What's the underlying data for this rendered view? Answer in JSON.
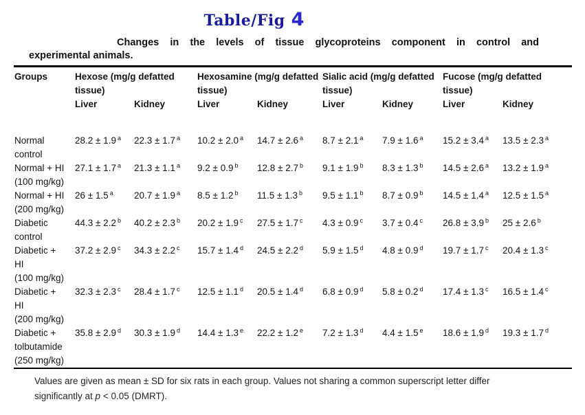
{
  "colors": {
    "title_main": "#1b1b9e",
    "title_number": "#2727cd",
    "text": "#151515",
    "rule": "#000000"
  },
  "title": {
    "main": "Table/Fig",
    "number": "4"
  },
  "caption": {
    "line1": "Changes in the levels of tissue glycoproteins component in control and",
    "line2": "experimental animals."
  },
  "table": {
    "groups_header": "Groups",
    "liver_label": "Liver",
    "kidney_label": "Kidney",
    "col_groups": [
      "Hexose (mg/g defatted tissue)",
      "Hexosamine (mg/g defatted tissue)",
      "Sialic acid (mg/g defatted tissue)",
      "Fucose  (mg/g defatted tissue)"
    ],
    "rows": [
      {
        "group_lines": [
          "Normal",
          "control"
        ],
        "values": [
          {
            "v": "28.2 ± 1.9",
            "s": "a"
          },
          {
            "v": "22.3 ± 1.7",
            "s": "a"
          },
          {
            "v": "10.2 ± 2.0",
            "s": "a"
          },
          {
            "v": "14.7 ± 2.6",
            "s": "a"
          },
          {
            "v": "8.7 ± 2.1",
            "s": "a"
          },
          {
            "v": "7.9 ± 1.6",
            "s": "a"
          },
          {
            "v": "15.2 ± 3.4",
            "s": "a"
          },
          {
            "v": "13.5 ± 2.3",
            "s": "a"
          }
        ]
      },
      {
        "group_lines": [
          "Normal + HI",
          "(100 mg/kg)"
        ],
        "values": [
          {
            "v": "27.1 ± 1.7",
            "s": "a"
          },
          {
            "v": "21.3 ± 1.1",
            "s": "a"
          },
          {
            "v": "9.2 ± 0.9",
            "s": "b"
          },
          {
            "v": "12.8 ± 2.7",
            "s": "b"
          },
          {
            "v": "9.1 ± 1.9",
            "s": "b"
          },
          {
            "v": "8.3 ± 1.3",
            "s": "b"
          },
          {
            "v": "14.5 ± 2.6",
            "s": "a"
          },
          {
            "v": "13.2 ± 1.9",
            "s": "a"
          }
        ]
      },
      {
        "group_lines": [
          "Normal + HI",
          "(200 mg/kg)"
        ],
        "values": [
          {
            "v": "26 ± 1.5",
            "s": "a"
          },
          {
            "v": "20.7 ± 1.9",
            "s": "a"
          },
          {
            "v": "8.5 ± 1.2",
            "s": "b"
          },
          {
            "v": "11.5 ± 1.3",
            "s": "b"
          },
          {
            "v": "9.5 ± 1.1",
            "s": "b"
          },
          {
            "v": "8.7 ± 0.9",
            "s": "b"
          },
          {
            "v": "14.5 ± 1.4",
            "s": "a"
          },
          {
            "v": "12.5 ± 1.5",
            "s": "a"
          }
        ]
      },
      {
        "group_lines": [
          "Diabetic",
          "control"
        ],
        "values": [
          {
            "v": "44.3 ± 2.2",
            "s": "b"
          },
          {
            "v": "40.2 ± 2.3",
            "s": "b"
          },
          {
            "v": "20.2 ± 1.9",
            "s": "c"
          },
          {
            "v": "27.5 ± 1.7",
            "s": "c"
          },
          {
            "v": "4.3 ± 0.9",
            "s": "c"
          },
          {
            "v": "3.7 ± 0.4",
            "s": "c"
          },
          {
            "v": "26.8 ± 3.9",
            "s": "b"
          },
          {
            "v": "25 ± 2.6",
            "s": "b"
          }
        ]
      },
      {
        "group_lines": [
          "Diabetic +",
          "HI",
          "(100 mg/kg)"
        ],
        "values": [
          {
            "v": "37.2 ± 2.9",
            "s": "c"
          },
          {
            "v": "34.3 ± 2.2",
            "s": "c"
          },
          {
            "v": "15.7 ± 1.4",
            "s": "d"
          },
          {
            "v": "24.5 ± 2.2",
            "s": "d"
          },
          {
            "v": "5.9 ± 1.5",
            "s": "d"
          },
          {
            "v": "4.8 ± 0.9",
            "s": "d"
          },
          {
            "v": "19.7 ± 1.7",
            "s": "c"
          },
          {
            "v": "20.4 ± 1.3",
            "s": "c"
          }
        ]
      },
      {
        "group_lines": [
          "Diabetic +",
          "HI",
          "(200 mg/kg)"
        ],
        "values": [
          {
            "v": "32.3 ± 2.3",
            "s": "c"
          },
          {
            "v": "28.4 ± 1.7",
            "s": "c"
          },
          {
            "v": "12.5 ± 1.1",
            "s": "d"
          },
          {
            "v": "20.5 ± 1.4",
            "s": "d"
          },
          {
            "v": "6.8 ± 0.9",
            "s": "d"
          },
          {
            "v": "5.8 ± 0.2",
            "s": "d"
          },
          {
            "v": "17.4 ± 1.3",
            "s": "c"
          },
          {
            "v": "16.5 ± 1.4",
            "s": "c"
          }
        ]
      },
      {
        "group_lines": [
          "Diabetic +",
          "tolbutamide",
          "(250 mg/kg)"
        ],
        "values": [
          {
            "v": "35.8 ± 2.9",
            "s": "d"
          },
          {
            "v": "30.3 ± 1.9",
            "s": "d"
          },
          {
            "v": "14.4 ± 1.3",
            "s": "e"
          },
          {
            "v": "22.2 ± 1.2",
            "s": "e"
          },
          {
            "v": "7.2 ± 1.3",
            "s": "d"
          },
          {
            "v": "4.4 ± 1.5",
            "s": "e"
          },
          {
            "v": "18.6 ± 1.9",
            "s": "d"
          },
          {
            "v": "19.3 ± 1.7",
            "s": "d"
          }
        ]
      }
    ]
  },
  "footnote": {
    "line1": "Values are given as mean ± SD for six rats in each group. Values not sharing a common superscript letter differ",
    "line2_before_p": "significantly at ",
    "line2_p": "p",
    "line2_after_p": " < 0.05 (DMRT)."
  }
}
